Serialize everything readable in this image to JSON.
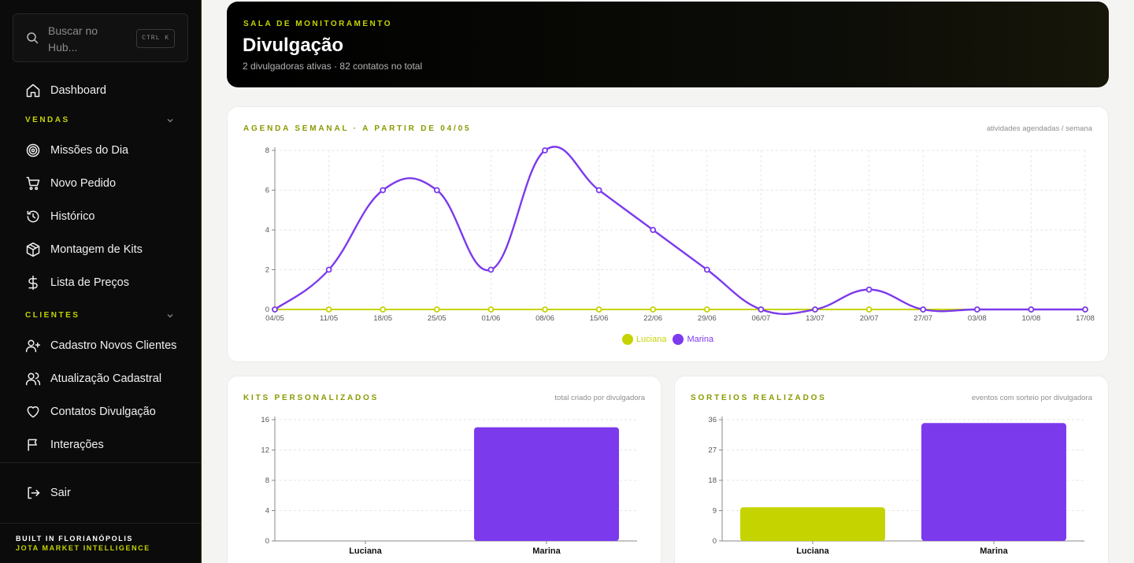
{
  "sidebar": {
    "search_placeholder": "Buscar no Hub...",
    "search_shortcut": "CTRL K",
    "dashboard": "Dashboard",
    "sections": {
      "vendas": "VENDAS",
      "clientes": "CLIENTES"
    },
    "vendas_items": [
      "Missões do Dia",
      "Novo Pedido",
      "Histórico",
      "Montagem de Kits",
      "Lista de Preços"
    ],
    "clientes_items": [
      "Cadastro Novos Clientes",
      "Atualização Cadastral",
      "Contatos Divulgação",
      "Interações"
    ],
    "logout": "Sair",
    "footer_line1": "BUILT IN FLORIANÓPOLIS",
    "footer_line2": "JOTA MARKET INTELLIGENCE"
  },
  "header": {
    "kicker": "SALA DE MONITORAMENTO",
    "title": "Divulgação",
    "subtitle": "2 divulgadoras ativas · 82 contatos no total"
  },
  "colors": {
    "accent": "#c5d400",
    "purple": "#7c3aed",
    "luciana": "#c5d400",
    "marina": "#7c3aed"
  },
  "chart_data": [
    {
      "type": "line",
      "title": "AGENDA SEMANAL · A PARTIR DE 04/05",
      "note": "atividades agendadas / semana",
      "x": [
        "04/05",
        "11/05",
        "18/05",
        "25/05",
        "01/06",
        "08/06",
        "15/06",
        "22/06",
        "29/06",
        "06/07",
        "13/07",
        "20/07",
        "27/07",
        "03/08",
        "10/08",
        "17/08"
      ],
      "yticks": [
        0,
        2,
        4,
        6,
        8
      ],
      "ylim": [
        0,
        8
      ],
      "grid": true,
      "legend_position": "bottom",
      "series": [
        {
          "name": "Luciana",
          "values": [
            0,
            0,
            0,
            0,
            0,
            0,
            0,
            0,
            0,
            0,
            0,
            0,
            0,
            0,
            0,
            0
          ]
        },
        {
          "name": "Marina",
          "values": [
            0,
            2,
            6,
            6,
            2,
            8,
            6,
            4,
            2,
            0,
            0,
            1,
            0,
            0,
            0,
            0
          ]
        }
      ]
    },
    {
      "type": "bar",
      "title": "KITS PERSONALIZADOS",
      "note": "total criado por divulgadora",
      "categories": [
        "Luciana",
        "Marina"
      ],
      "values": [
        0,
        15
      ],
      "yticks": [
        0,
        4,
        8,
        12,
        16
      ],
      "ylim": [
        0,
        16
      ],
      "grid": true
    },
    {
      "type": "bar",
      "title": "SORTEIOS REALIZADOS",
      "note": "eventos com sorteio por divulgadora",
      "categories": [
        "Luciana",
        "Marina"
      ],
      "values": [
        10,
        35
      ],
      "yticks": [
        0,
        9,
        18,
        27,
        36
      ],
      "ylim": [
        0,
        36
      ],
      "grid": true
    }
  ]
}
